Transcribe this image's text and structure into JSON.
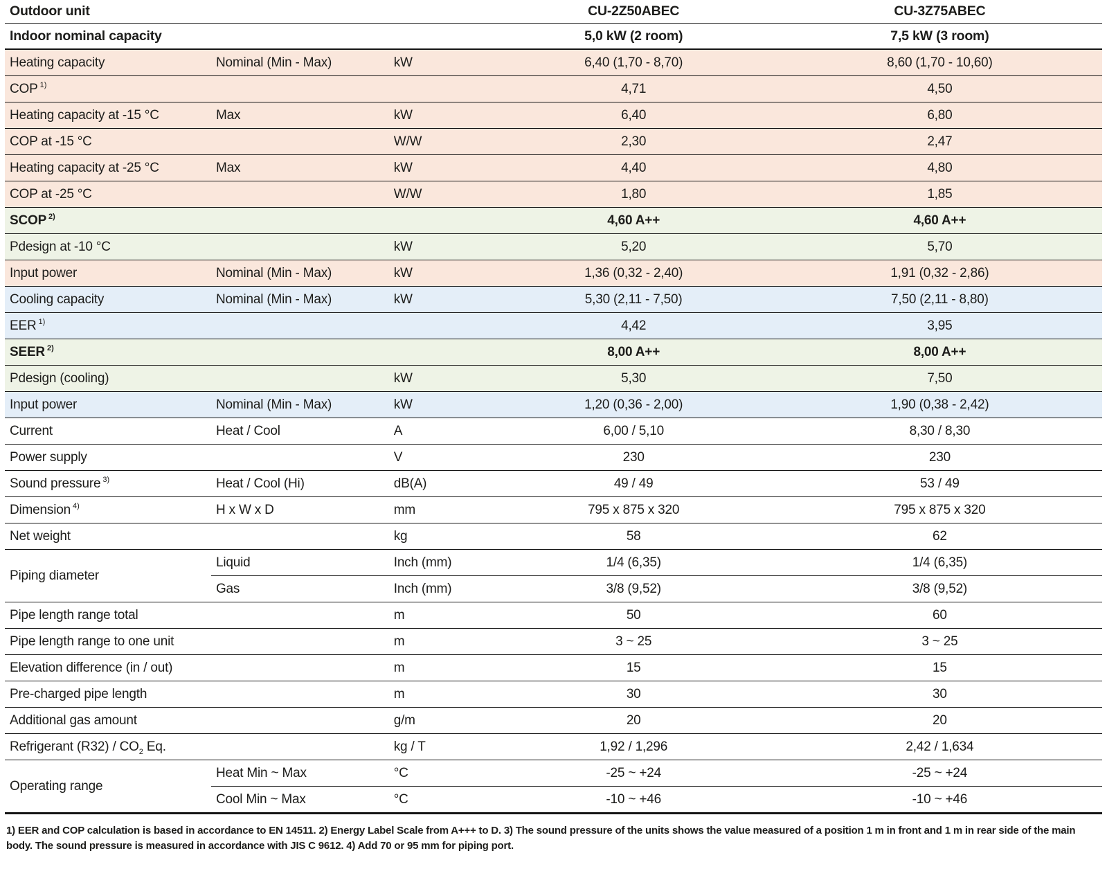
{
  "colors": {
    "heat": "#fae7dc",
    "energy": "#eef3e6",
    "cool": "#e4eef8",
    "line": "#141414",
    "text": "#1d1d1b"
  },
  "header": {
    "outdoor_unit_label": "Outdoor unit",
    "models": [
      "CU-2Z50ABEC",
      "CU-3Z75ABEC"
    ],
    "capacity_label": "Indoor nominal capacity",
    "capacities": [
      "5,0 kW (2 room)",
      "7,5 kW (3 room)"
    ]
  },
  "rows": [
    {
      "label_parts": [
        {
          "t": "Heating capacity"
        }
      ],
      "sub": "Nominal (Min - Max)",
      "unit": "kW",
      "v1": "6,40 (1,70 - 8,70)",
      "v2": "8,60 (1,70 - 10,60)",
      "bg": "heat"
    },
    {
      "label_parts": [
        {
          "t": "COP"
        },
        {
          "sup": "1)"
        }
      ],
      "sub": "",
      "unit": "",
      "v1": "4,71",
      "v2": "4,50",
      "bg": "heat"
    },
    {
      "label_parts": [
        {
          "t": "Heating capacity at -15 °C"
        }
      ],
      "sub": "Max",
      "unit": "kW",
      "v1": "6,40",
      "v2": "6,80",
      "bg": "heat"
    },
    {
      "label_parts": [
        {
          "t": "COP at -15 °C"
        }
      ],
      "sub": "",
      "unit": "W/W",
      "v1": "2,30",
      "v2": "2,47",
      "bg": "heat"
    },
    {
      "label_parts": [
        {
          "t": "Heating capacity at -25 °C"
        }
      ],
      "sub": "Max",
      "unit": "kW",
      "v1": "4,40",
      "v2": "4,80",
      "bg": "heat"
    },
    {
      "label_parts": [
        {
          "t": "COP at -25 °C"
        }
      ],
      "sub": "",
      "unit": "W/W",
      "v1": "1,80",
      "v2": "1,85",
      "bg": "heat"
    },
    {
      "label_parts": [
        {
          "t": "SCOP"
        },
        {
          "sup": "2)"
        }
      ],
      "sub": "",
      "unit": "",
      "v1": "4,60 A++",
      "v2": "4,60 A++",
      "bg": "energy",
      "bold": true
    },
    {
      "label_parts": [
        {
          "t": "Pdesign at -10 °C"
        }
      ],
      "sub": "",
      "unit": "kW",
      "v1": "5,20",
      "v2": "5,70",
      "bg": "energy"
    },
    {
      "label_parts": [
        {
          "t": "Input power"
        }
      ],
      "sub": "Nominal (Min - Max)",
      "unit": "kW",
      "v1": "1,36 (0,32 - 2,40)",
      "v2": "1,91 (0,32 - 2,86)",
      "bg": "heat"
    },
    {
      "label_parts": [
        {
          "t": "Cooling capacity"
        }
      ],
      "sub": "Nominal (Min - Max)",
      "unit": "kW",
      "v1": "5,30 (2,11 - 7,50)",
      "v2": "7,50 (2,11 - 8,80)",
      "bg": "cool"
    },
    {
      "label_parts": [
        {
          "t": "EER"
        },
        {
          "sup": "1)"
        }
      ],
      "sub": "",
      "unit": "",
      "v1": "4,42",
      "v2": "3,95",
      "bg": "cool"
    },
    {
      "label_parts": [
        {
          "t": "SEER"
        },
        {
          "sup": "2)"
        }
      ],
      "sub": "",
      "unit": "",
      "v1": "8,00 A++",
      "v2": "8,00 A++",
      "bg": "energy",
      "bold": true
    },
    {
      "label_parts": [
        {
          "t": "Pdesign (cooling)"
        }
      ],
      "sub": "",
      "unit": "kW",
      "v1": "5,30",
      "v2": "7,50",
      "bg": "energy"
    },
    {
      "label_parts": [
        {
          "t": "Input power"
        }
      ],
      "sub": "Nominal (Min - Max)",
      "unit": "kW",
      "v1": "1,20 (0,36 - 2,00)",
      "v2": "1,90 (0,38 - 2,42)",
      "bg": "cool"
    },
    {
      "label_parts": [
        {
          "t": "Current"
        }
      ],
      "sub": "Heat / Cool",
      "unit": "A",
      "v1": "6,00 / 5,10",
      "v2": "8,30 / 8,30",
      "bg": "none"
    },
    {
      "label_parts": [
        {
          "t": "Power supply"
        }
      ],
      "sub": "",
      "unit": "V",
      "v1": "230",
      "v2": "230",
      "bg": "none"
    },
    {
      "label_parts": [
        {
          "t": "Sound pressure"
        },
        {
          "sup": "3)"
        }
      ],
      "sub": "Heat / Cool (Hi)",
      "unit": "dB(A)",
      "v1": "49 / 49",
      "v2": "53 / 49",
      "bg": "none"
    },
    {
      "label_parts": [
        {
          "t": "Dimension"
        },
        {
          "sup": "4)"
        }
      ],
      "sub": "H x W x D",
      "unit": "mm",
      "v1": "795 x 875 x 320",
      "v2": "795 x 875 x 320",
      "bg": "none"
    },
    {
      "label_parts": [
        {
          "t": "Net weight"
        }
      ],
      "sub": "",
      "unit": "kg",
      "v1": "58",
      "v2": "62",
      "bg": "none"
    },
    {
      "label_parts": [
        {
          "t": "Piping diameter"
        }
      ],
      "rowspan": 2,
      "sub": "Liquid",
      "unit": "Inch (mm)",
      "v1": "1/4 (6,35)",
      "v2": "1/4 (6,35)",
      "bg": "none"
    },
    {
      "skip_label": true,
      "sub": "Gas",
      "unit": "Inch (mm)",
      "v1": "3/8 (9,52)",
      "v2": "3/8 (9,52)",
      "bg": "none"
    },
    {
      "label_parts": [
        {
          "t": "Pipe length range total"
        }
      ],
      "sub": "",
      "unit": "m",
      "v1": "50",
      "v2": "60",
      "bg": "none"
    },
    {
      "label_parts": [
        {
          "t": "Pipe length range to one unit"
        }
      ],
      "sub": "",
      "unit": "m",
      "v1": "3 ~ 25",
      "v2": "3 ~ 25",
      "bg": "none"
    },
    {
      "label_parts": [
        {
          "t": "Elevation difference (in / out)"
        }
      ],
      "sub": "",
      "unit": "m",
      "v1": "15",
      "v2": "15",
      "bg": "none"
    },
    {
      "label_parts": [
        {
          "t": "Pre-charged pipe length"
        }
      ],
      "sub": "",
      "unit": "m",
      "v1": "30",
      "v2": "30",
      "bg": "none"
    },
    {
      "label_parts": [
        {
          "t": "Additional gas amount"
        }
      ],
      "sub": "",
      "unit": "g/m",
      "v1": "20",
      "v2": "20",
      "bg": "none"
    },
    {
      "label_parts": [
        {
          "t": "Refrigerant (R32) / CO"
        },
        {
          "sub": "2"
        },
        {
          "t": " Eq."
        }
      ],
      "sub": "",
      "unit": "kg / T",
      "v1": "1,92 / 1,296",
      "v2": "2,42 / 1,634",
      "bg": "none"
    },
    {
      "label_parts": [
        {
          "t": "Operating range"
        }
      ],
      "rowspan": 2,
      "sub": "Heat Min ~ Max",
      "unit": "°C",
      "v1": "-25 ~ +24",
      "v2": "-25 ~ +24",
      "bg": "none"
    },
    {
      "skip_label": true,
      "sub": "Cool Min ~ Max",
      "unit": "°C",
      "v1": "-10 ~ +46",
      "v2": "-10 ~ +46",
      "bg": "none"
    }
  ],
  "footnote": "1) EER and COP calculation is based in accordance to EN 14511. 2) Energy Label Scale from A+++ to D. 3) The sound pressure of the units shows the value measured of a position 1 m in front and 1 m in rear side of the main body. The sound pressure is measured in accordance with JIS C 9612. 4) Add 70 or 95 mm for piping port."
}
